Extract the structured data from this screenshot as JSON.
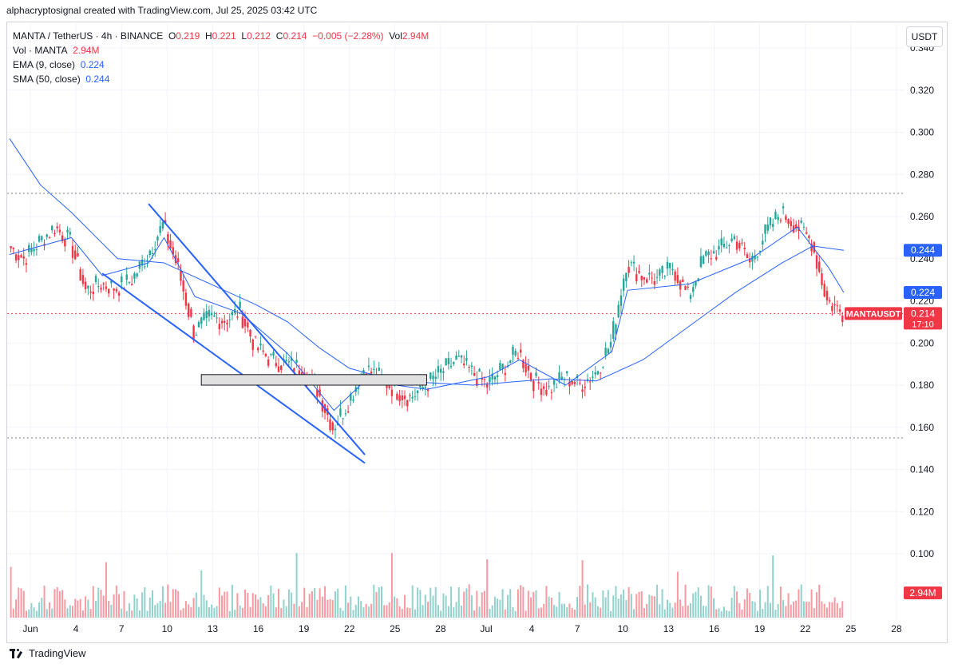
{
  "header": {
    "credit": "alphacryptosignal created with TradingView.com, Jul 25, 2025 03:42 UTC"
  },
  "legend": {
    "symbol": "MANTA / TetherUS · 4h · BINANCE",
    "o_label": "O",
    "o_value": "0.219",
    "h_label": "H",
    "h_value": "0.221",
    "l_label": "L",
    "l_value": "0.212",
    "c_label": "C",
    "c_value": "0.214",
    "change": "−0.005 (−2.28%)",
    "vol_label": "Vol",
    "vol_value": "2.94M",
    "vol_row_label": "Vol · MANTA",
    "vol_row_value": "2.94M",
    "ema_label": "EMA (9, close)",
    "ema_value": "0.224",
    "sma_label": "SMA (50, close)",
    "sma_value": "0.244"
  },
  "unit_button": "USDT",
  "footer": {
    "brand": "TradingView"
  },
  "colors": {
    "up": "#26a69a",
    "down": "#f23645",
    "ma": "#2962ff",
    "grid": "#f0f3fa"
  },
  "chart_data": {
    "type": "candlestick",
    "symbol": "MANTAUSDT",
    "interval": "4h",
    "y_ticks": [
      "0.340",
      "0.320",
      "0.300",
      "0.280",
      "0.260",
      "0.240",
      "0.220",
      "0.200",
      "0.180",
      "0.160",
      "0.140",
      "0.120",
      "0.100"
    ],
    "x_ticks": [
      "Jun",
      "4",
      "7",
      "10",
      "13",
      "16",
      "19",
      "22",
      "25",
      "28",
      "Jul",
      "4",
      "7",
      "10",
      "13",
      "16",
      "19",
      "22",
      "25",
      "28"
    ],
    "price_badges": [
      {
        "label": "0.244",
        "value": 0.244,
        "color": "#2962ff"
      },
      {
        "label": "0.224",
        "value": 0.224,
        "color": "#2962ff"
      },
      {
        "label": "MANTAUSDT",
        "value": 0.214,
        "color": "#f23645",
        "extra": "0.214",
        "extra2": "17:10"
      },
      {
        "label": "2.94M",
        "color": "#f23645"
      }
    ],
    "close_path": [
      {
        "t": "Jun 1",
        "v": 0.246
      },
      {
        "t": "Jun 2",
        "v": 0.24
      },
      {
        "t": "Jun 3",
        "v": 0.248
      },
      {
        "t": "Jun 4",
        "v": 0.255
      },
      {
        "t": "Jun 5",
        "v": 0.248
      },
      {
        "t": "Jun 6",
        "v": 0.225
      },
      {
        "t": "Jun 7",
        "v": 0.228
      },
      {
        "t": "Jun 8",
        "v": 0.226
      },
      {
        "t": "Jun 9",
        "v": 0.23
      },
      {
        "t": "Jun 10",
        "v": 0.242
      },
      {
        "t": "Jun 11",
        "v": 0.256
      },
      {
        "t": "Jun 12",
        "v": 0.235
      },
      {
        "t": "Jun 13",
        "v": 0.205
      },
      {
        "t": "Jun 14",
        "v": 0.212
      },
      {
        "t": "Jun 15",
        "v": 0.211
      },
      {
        "t": "Jun 16",
        "v": 0.215
      },
      {
        "t": "Jun 17",
        "v": 0.198
      },
      {
        "t": "Jun 18",
        "v": 0.192
      },
      {
        "t": "Jun 19",
        "v": 0.19
      },
      {
        "t": "Jun 20",
        "v": 0.188
      },
      {
        "t": "Jun 21",
        "v": 0.178
      },
      {
        "t": "Jun 22",
        "v": 0.16
      },
      {
        "t": "Jun 23",
        "v": 0.172
      },
      {
        "t": "Jun 24",
        "v": 0.188
      },
      {
        "t": "Jun 25",
        "v": 0.184
      },
      {
        "t": "Jun 26",
        "v": 0.178
      },
      {
        "t": "Jun 27",
        "v": 0.174
      },
      {
        "t": "Jun 28",
        "v": 0.18
      },
      {
        "t": "Jun 29",
        "v": 0.186
      },
      {
        "t": "Jun 30",
        "v": 0.192
      },
      {
        "t": "Jul 1",
        "v": 0.186
      },
      {
        "t": "Jul 2",
        "v": 0.18
      },
      {
        "t": "Jul 3",
        "v": 0.188
      },
      {
        "t": "Jul 4",
        "v": 0.196
      },
      {
        "t": "Jul 5",
        "v": 0.182
      },
      {
        "t": "Jul 6",
        "v": 0.178
      },
      {
        "t": "Jul 7",
        "v": 0.184
      },
      {
        "t": "Jul 8",
        "v": 0.18
      },
      {
        "t": "Jul 9",
        "v": 0.186
      },
      {
        "t": "Jul 10",
        "v": 0.2
      },
      {
        "t": "Jul 11",
        "v": 0.238
      },
      {
        "t": "Jul 12",
        "v": 0.232
      },
      {
        "t": "Jul 13",
        "v": 0.23
      },
      {
        "t": "Jul 14",
        "v": 0.236
      },
      {
        "t": "Jul 15",
        "v": 0.222
      },
      {
        "t": "Jul 16",
        "v": 0.24
      },
      {
        "t": "Jul 17",
        "v": 0.244
      },
      {
        "t": "Jul 18",
        "v": 0.25
      },
      {
        "t": "Jul 19",
        "v": 0.238
      },
      {
        "t": "Jul 20",
        "v": 0.252
      },
      {
        "t": "Jul 21",
        "v": 0.262
      },
      {
        "t": "Jul 22",
        "v": 0.256
      },
      {
        "t": "Jul 23",
        "v": 0.248
      },
      {
        "t": "Jul 24",
        "v": 0.22
      },
      {
        "t": "Jul 25",
        "v": 0.214
      }
    ],
    "ema_path": [
      {
        "t": "Jun 1",
        "v": 0.242
      },
      {
        "t": "Jun 5",
        "v": 0.25
      },
      {
        "t": "Jun 7",
        "v": 0.232
      },
      {
        "t": "Jun 10",
        "v": 0.238
      },
      {
        "t": "Jun 11",
        "v": 0.25
      },
      {
        "t": "Jun 13",
        "v": 0.222
      },
      {
        "t": "Jun 16",
        "v": 0.214
      },
      {
        "t": "Jun 19",
        "v": 0.195
      },
      {
        "t": "Jun 22",
        "v": 0.168
      },
      {
        "t": "Jun 24",
        "v": 0.182
      },
      {
        "t": "Jun 28",
        "v": 0.178
      },
      {
        "t": "Jul 2",
        "v": 0.184
      },
      {
        "t": "Jul 4",
        "v": 0.192
      },
      {
        "t": "Jul 7",
        "v": 0.18
      },
      {
        "t": "Jul 10",
        "v": 0.196
      },
      {
        "t": "Jul 11",
        "v": 0.225
      },
      {
        "t": "Jul 15",
        "v": 0.228
      },
      {
        "t": "Jul 19",
        "v": 0.24
      },
      {
        "t": "Jul 22",
        "v": 0.255
      },
      {
        "t": "Jul 24",
        "v": 0.236
      },
      {
        "t": "Jul 25",
        "v": 0.224
      }
    ],
    "sma_path": [
      {
        "t": "Jun 1",
        "v": 0.297
      },
      {
        "t": "Jun 3",
        "v": 0.275
      },
      {
        "t": "Jun 5",
        "v": 0.262
      },
      {
        "t": "Jun 8",
        "v": 0.24
      },
      {
        "t": "Jun 11",
        "v": 0.238
      },
      {
        "t": "Jun 14",
        "v": 0.228
      },
      {
        "t": "Jun 17",
        "v": 0.218
      },
      {
        "t": "Jun 19",
        "v": 0.21
      },
      {
        "t": "Jun 21",
        "v": 0.198
      },
      {
        "t": "Jun 23",
        "v": 0.188
      },
      {
        "t": "Jun 26",
        "v": 0.182
      },
      {
        "t": "Jul 1",
        "v": 0.18
      },
      {
        "t": "Jul 6",
        "v": 0.183
      },
      {
        "t": "Jul 9",
        "v": 0.182
      },
      {
        "t": "Jul 12",
        "v": 0.192
      },
      {
        "t": "Jul 15",
        "v": 0.208
      },
      {
        "t": "Jul 18",
        "v": 0.224
      },
      {
        "t": "Jul 21",
        "v": 0.238
      },
      {
        "t": "Jul 23",
        "v": 0.246
      },
      {
        "t": "Jul 25",
        "v": 0.244
      }
    ],
    "annotations": {
      "channel_upper": [
        {
          "t": "Jun 10",
          "v": 0.266
        },
        {
          "t": "Jun 24",
          "v": 0.147
        }
      ],
      "channel_lower": [
        {
          "t": "Jun 7",
          "v": 0.233
        },
        {
          "t": "Jun 24",
          "v": 0.143
        }
      ],
      "zone": {
        "t0": "Jun 13",
        "t1": "Jun 28",
        "v0": 0.185,
        "v1": 0.18
      },
      "hline_top": 0.271,
      "hline_bottom": 0.155,
      "hline_last": 0.214
    },
    "volume_note": "Volume histogram shown below price, last 2.94M"
  }
}
